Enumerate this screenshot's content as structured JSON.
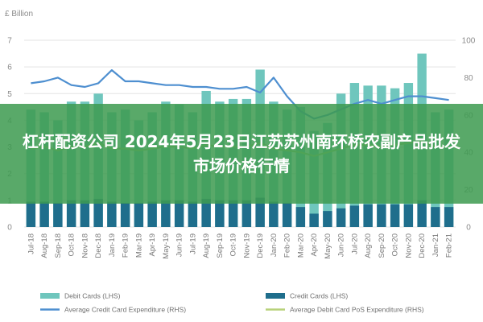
{
  "overlay": {
    "title": "杠杆配资公司 2024年5月23日江苏苏州南环桥农副产品批发市场价格行情",
    "band_color": "#3e9b50",
    "band_opacity": 0.86
  },
  "chart_data": {
    "type": "bar",
    "units_label": "£ Billion",
    "categories": [
      "Jul-18",
      "Aug-18",
      "Sep-18",
      "Oct-18",
      "Nov-18",
      "Dec-18",
      "Jan-19",
      "Feb-19",
      "Mar-19",
      "Apr-19",
      "May-19",
      "Jun-19",
      "Jul-19",
      "Aug-19",
      "Sep-19",
      "Oct-19",
      "Nov-19",
      "Dec-19",
      "Jan-20",
      "Feb-20",
      "Mar-20",
      "Apr-20",
      "May-20",
      "Jun-20",
      "Jul-20",
      "Aug-20",
      "Sep-20",
      "Oct-20",
      "Nov-20",
      "Dec-20",
      "Jan-21",
      "Feb-21"
    ],
    "y_left": {
      "min": 0,
      "max": 7,
      "ticks": [
        0,
        1,
        2,
        3,
        4,
        5,
        6,
        7
      ]
    },
    "y_right": {
      "min": 0,
      "max": 100,
      "ticks": [
        0,
        20,
        40,
        60,
        80,
        100
      ]
    },
    "grid": true,
    "legend_position": "bottom",
    "series": [
      {
        "name": "Debit Cards (LHS)",
        "kind": "bar",
        "axis": "left",
        "color": "#6fc6bd",
        "values": [
          4.4,
          4.3,
          4.0,
          4.7,
          4.7,
          5.0,
          4.3,
          4.4,
          4.0,
          4.3,
          4.7,
          4.6,
          4.3,
          5.1,
          4.7,
          4.8,
          4.8,
          5.9,
          4.7,
          4.4,
          4.5,
          3.6,
          3.9,
          5.0,
          5.4,
          5.3,
          5.3,
          5.2,
          5.4,
          6.5,
          4.3,
          4.4
        ]
      },
      {
        "name": "Credit Cards (LHS)",
        "kind": "bar",
        "axis": "left",
        "color": "#1f6e8c",
        "values": [
          0.95,
          0.95,
          0.9,
          1.0,
          1.0,
          1.05,
          0.95,
          0.9,
          0.9,
          0.95,
          1.0,
          1.0,
          0.95,
          1.05,
          1.0,
          1.0,
          1.0,
          1.1,
          0.95,
          0.9,
          0.75,
          0.5,
          0.6,
          0.7,
          0.8,
          0.85,
          0.85,
          0.85,
          0.85,
          1.0,
          0.75,
          0.75
        ]
      },
      {
        "name": "Average Credit Card Expenditure (RHS)",
        "kind": "line",
        "axis": "right",
        "color": "#4e8fd0",
        "values": [
          77,
          78,
          80,
          76,
          75,
          77,
          84,
          78,
          78,
          77,
          76,
          76,
          75,
          75,
          74,
          74,
          75,
          72,
          80,
          70,
          62,
          58,
          60,
          63,
          66,
          68,
          66,
          68,
          70,
          70,
          69,
          68
        ]
      },
      {
        "name": "Average Debit Card PoS Expenditure (RHS)",
        "kind": "line",
        "axis": "right",
        "color": "#b7d27a",
        "values": [
          42,
          43,
          41,
          43,
          43,
          45,
          42,
          42,
          41,
          42,
          43,
          43,
          42,
          44,
          43,
          43,
          43,
          45,
          42,
          41,
          40,
          38,
          40,
          42,
          44,
          44,
          43,
          44,
          45,
          46,
          43,
          43
        ]
      }
    ]
  }
}
